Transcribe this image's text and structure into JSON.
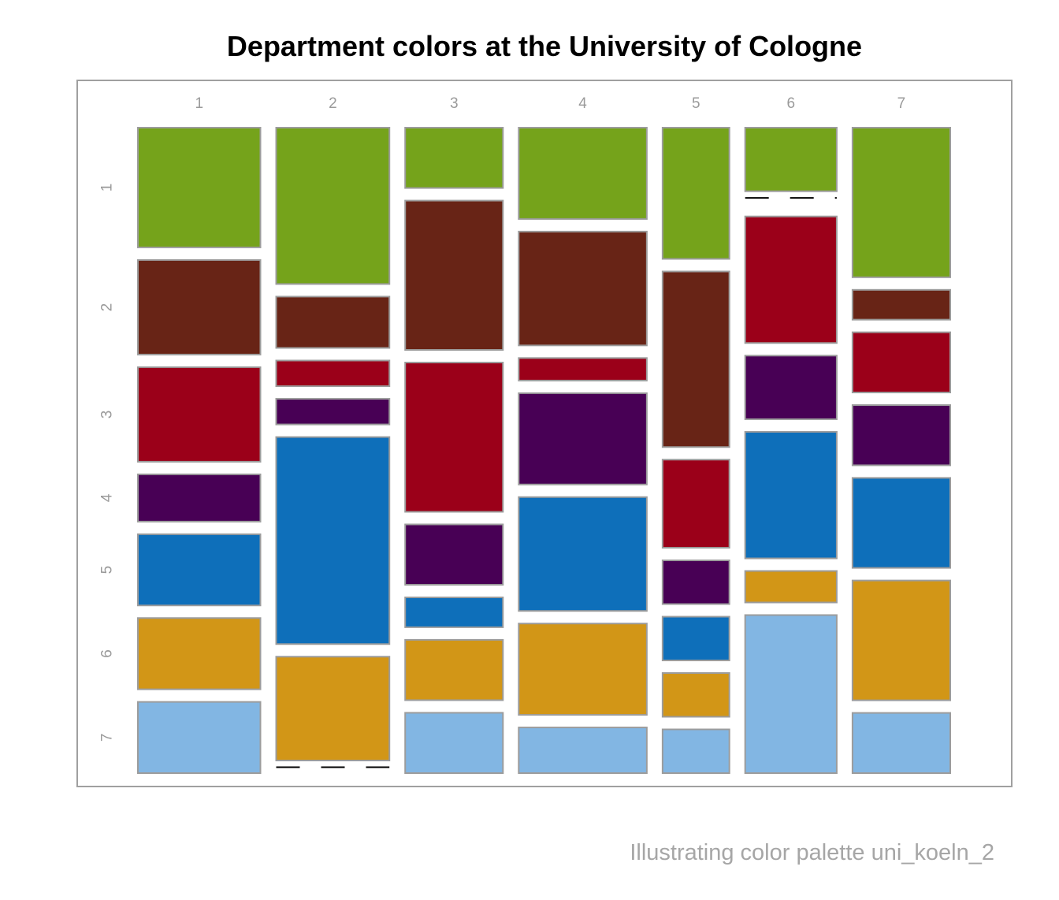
{
  "title": "Department colors at the University of Cologne",
  "caption": "Illustrating color palette uni_koeln_2",
  "palette": {
    "1": "#75a31b",
    "2": "#682416",
    "3": "#9b0019",
    "4": "#480055",
    "5": "#0e6fba",
    "6": "#d29617",
    "7": "#82b6e3"
  },
  "chart_data": {
    "type": "mosaic",
    "title": "Department colors at the University of Cologne",
    "column_labels": [
      "1",
      "2",
      "3",
      "4",
      "5",
      "6",
      "7"
    ],
    "row_labels": [
      "1",
      "2",
      "3",
      "4",
      "5",
      "6",
      "7"
    ],
    "column_widths": [
      0.198,
      0.183,
      0.158,
      0.207,
      0.108,
      0.148,
      0.158
    ],
    "cells": [
      [
        0.195,
        0.154,
        0.154,
        0.077,
        0.116,
        0.116,
        0.116
      ],
      [
        0.256,
        0.084,
        0.042,
        0.042,
        0.339,
        0.17,
        0.0
      ],
      [
        0.099,
        0.245,
        0.245,
        0.099,
        0.049,
        0.099,
        0.099
      ],
      [
        0.15,
        0.187,
        0.037,
        0.15,
        0.187,
        0.15,
        0.075
      ],
      [
        0.216,
        0.289,
        0.145,
        0.072,
        0.072,
        0.072,
        0.072
      ],
      [
        0.105,
        0.0,
        0.209,
        0.105,
        0.209,
        0.052,
        0.261
      ],
      [
        0.246,
        0.049,
        0.099,
        0.099,
        0.148,
        0.197,
        0.099
      ]
    ],
    "zero_cells": [
      [
        2,
        7
      ],
      [
        6,
        2
      ]
    ]
  }
}
